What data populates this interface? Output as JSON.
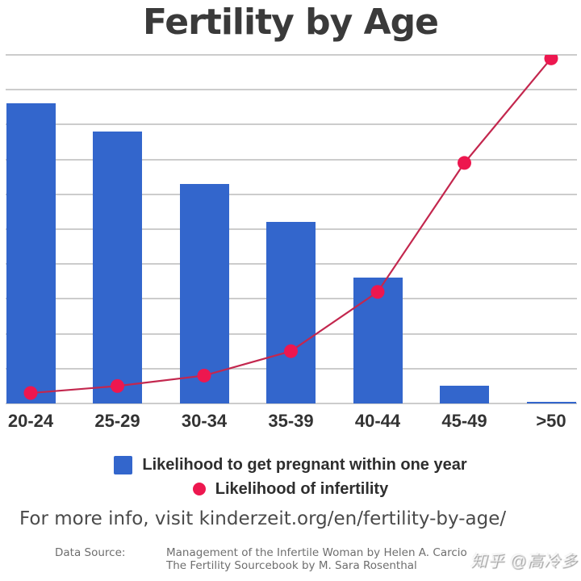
{
  "title": "Fertility by Age",
  "chart_data": {
    "type": "bar",
    "categories": [
      "20-24",
      "25-29",
      "30-34",
      "35-39",
      "40-44",
      "45-49",
      ">50"
    ],
    "series": [
      {
        "name": "Likelihood to get pregnant within one year",
        "type": "bar",
        "color": "#3366CC",
        "values": [
          86,
          78,
          63,
          52,
          36,
          5,
          0
        ]
      },
      {
        "name": "Likelihood of infertility",
        "type": "line",
        "color": "#C3274E",
        "marker_color": "#ED174F",
        "values": [
          3,
          5,
          8,
          15,
          32,
          69,
          99
        ]
      }
    ],
    "title": "Fertility by Age",
    "xlabel": "",
    "ylabel": "",
    "ylim": [
      0,
      100
    ],
    "grid": true,
    "grid_step": 10,
    "grid_color": "#cccccc",
    "legend_position": "bottom"
  },
  "footer": {
    "info_text": "For more info, visit kinderzeit.org/en/fertility-by-age/"
  },
  "source": {
    "label": "Data Source:",
    "line1": "Management of the Infertile Woman by Helen A. Carcio",
    "line2": "The Fertility Sourcebook by M. Sara Rosenthal"
  },
  "watermark": "知乎 @高冷多"
}
